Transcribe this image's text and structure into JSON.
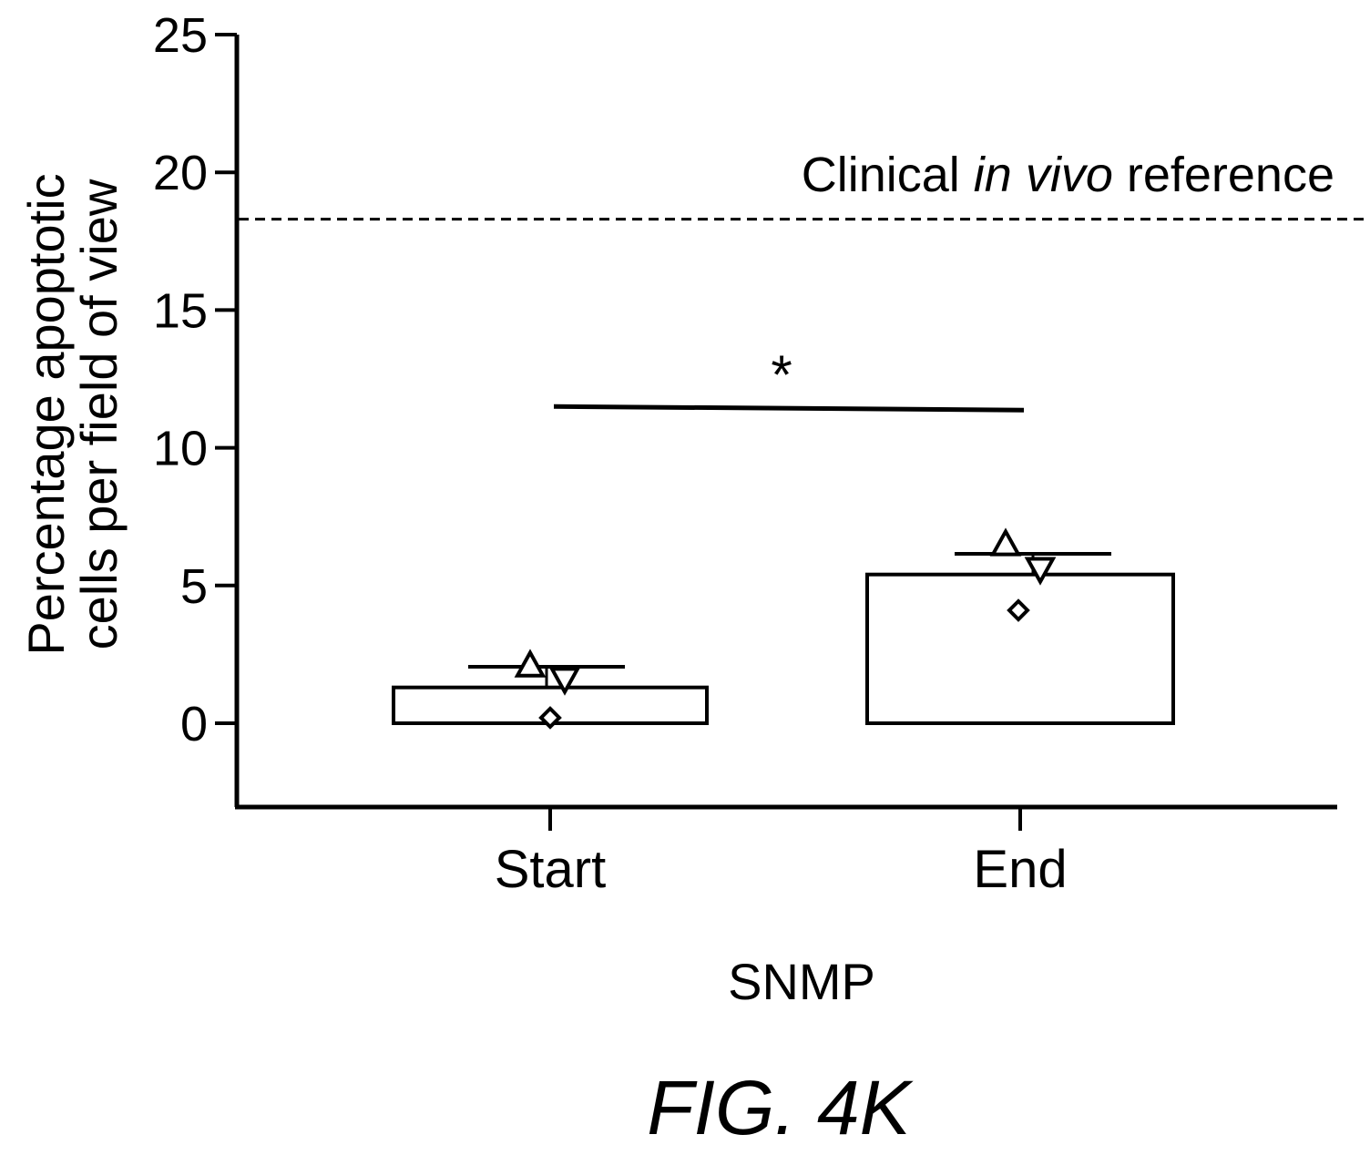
{
  "chart_data": {
    "type": "bar",
    "title": "",
    "xlabel": "SNMP",
    "ylabel_lines": [
      "Percentage apoptotic",
      "cells per field of view"
    ],
    "ylim": [
      -3,
      25
    ],
    "yticks": [
      0,
      5,
      10,
      15,
      20,
      25
    ],
    "categories": [
      "Start",
      "End"
    ],
    "values": [
      1.3,
      5.4
    ],
    "error_upper": [
      2.05,
      6.15
    ],
    "points": [
      {
        "category": "Start",
        "marker": "triangle-up",
        "value": 2.1
      },
      {
        "category": "Start",
        "marker": "triangle-down",
        "value": 1.6
      },
      {
        "category": "Start",
        "marker": "diamond",
        "value": 0.2
      },
      {
        "category": "End",
        "marker": "triangle-up",
        "value": 6.5
      },
      {
        "category": "End",
        "marker": "triangle-down",
        "value": 5.6
      },
      {
        "category": "End",
        "marker": "diamond",
        "value": 4.1
      }
    ],
    "reference_line": {
      "value": 18.3,
      "label_pre": "Clinical ",
      "label_italic": "in vivo",
      "label_post": " reference",
      "style": "dashed"
    },
    "significance": {
      "symbol": "*",
      "between": [
        "Start",
        "End"
      ],
      "level": 11.5
    },
    "grid": false,
    "legend": "none"
  },
  "figure_caption": "FIG. 4K"
}
